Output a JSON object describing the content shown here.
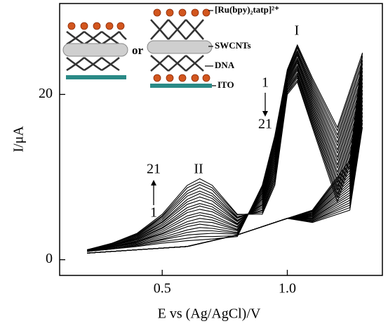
{
  "chart_data": {
    "type": "line",
    "x_label": "E vs (Ag/AgCl)/V",
    "y_label": "I/μA",
    "x": [
      0.2,
      0.3,
      0.4,
      0.5,
      0.6,
      0.65,
      0.7,
      0.8,
      0.9,
      0.95,
      1.0,
      1.04,
      1.1,
      1.2,
      1.3,
      1.25,
      1.1,
      1.0,
      0.9,
      0.8,
      0.6,
      0.4,
      0.2
    ],
    "xlim": [
      0.09,
      1.38
    ],
    "xticks": [
      0.5,
      {
        "value": 1.0,
        "label": "1.0"
      }
    ],
    "ylim": [
      -1.9,
      31
    ],
    "yticks": [
      0,
      20
    ],
    "color": "#000000",
    "series": [
      {
        "values": [
          1.0,
          1.3,
          1.6,
          2.0,
          2.3,
          2.4,
          2.5,
          2.8,
          9.0,
          15.0,
          23.0,
          26.0,
          22.0,
          16.0,
          25.0,
          12.0,
          6.0,
          5.0,
          4.0,
          3.0,
          1.6,
          1.2,
          0.8
        ]
      },
      {
        "values": [
          1.0,
          1.3,
          1.7,
          2.2,
          2.6,
          2.8,
          2.8,
          2.9,
          8.8,
          14.7,
          22.9,
          25.8,
          21.7,
          15.6,
          24.6,
          11.7,
          5.9,
          5.0,
          4.0,
          3.0,
          1.6,
          1.2,
          0.8
        ]
      },
      {
        "values": [
          1.0,
          1.4,
          1.8,
          2.4,
          3.0,
          3.1,
          3.2,
          3.1,
          8.7,
          14.4,
          22.7,
          25.6,
          21.4,
          15.1,
          24.1,
          11.4,
          5.9,
          5.0,
          4.0,
          3.0,
          1.6,
          1.2,
          0.8
        ]
      },
      {
        "values": [
          1.0,
          1.4,
          1.8,
          2.5,
          3.3,
          3.5,
          3.5,
          3.2,
          8.5,
          14.1,
          22.6,
          25.3,
          21.1,
          14.7,
          23.7,
          11.1,
          5.8,
          5.0,
          4.0,
          3.0,
          1.6,
          1.2,
          0.8
        ]
      },
      {
        "values": [
          1.0,
          1.4,
          1.9,
          2.7,
          3.6,
          3.9,
          3.8,
          3.3,
          8.3,
          13.8,
          22.4,
          25.1,
          20.8,
          14.2,
          23.2,
          10.8,
          5.7,
          5.0,
          4.0,
          3.0,
          1.6,
          1.2,
          0.8
        ]
      },
      {
        "values": [
          1.1,
          1.5,
          2.0,
          2.9,
          4.0,
          4.3,
          4.1,
          3.5,
          8.1,
          13.5,
          22.3,
          24.9,
          20.5,
          13.8,
          22.8,
          10.5,
          5.6,
          5.0,
          4.0,
          3.0,
          1.6,
          1.2,
          0.8
        ]
      },
      {
        "values": [
          1.1,
          1.5,
          2.1,
          3.1,
          4.3,
          4.6,
          4.5,
          3.6,
          8.0,
          13.2,
          22.1,
          24.7,
          20.2,
          13.3,
          22.3,
          10.2,
          5.6,
          5.0,
          4.0,
          3.0,
          1.6,
          1.2,
          0.8
        ]
      },
      {
        "values": [
          1.1,
          1.5,
          2.2,
          3.2,
          4.6,
          5.0,
          4.8,
          3.7,
          7.8,
          12.9,
          22.0,
          24.4,
          19.9,
          12.9,
          21.9,
          9.9,
          5.5,
          5.0,
          4.0,
          3.0,
          1.6,
          1.2,
          0.8
        ]
      },
      {
        "values": [
          1.1,
          1.6,
          2.2,
          3.4,
          5.0,
          5.4,
          5.1,
          3.9,
          7.6,
          12.6,
          21.8,
          24.2,
          19.6,
          12.4,
          21.4,
          9.6,
          5.4,
          5.0,
          4.0,
          3.0,
          1.6,
          1.2,
          0.8
        ]
      },
      {
        "values": [
          1.1,
          1.6,
          2.3,
          3.6,
          5.3,
          5.7,
          5.4,
          4.0,
          7.4,
          12.3,
          21.7,
          24.0,
          19.3,
          12.0,
          21.0,
          9.3,
          5.3,
          5.0,
          4.0,
          3.0,
          1.6,
          1.2,
          0.8
        ]
      },
      {
        "values": [
          1.1,
          1.7,
          2.4,
          3.8,
          5.7,
          6.1,
          5.8,
          4.2,
          7.3,
          12.0,
          21.5,
          23.8,
          19.0,
          11.5,
          20.5,
          9.0,
          5.3,
          5.0,
          4.0,
          3.0,
          1.6,
          1.2,
          0.8
        ]
      },
      {
        "values": [
          1.1,
          1.7,
          2.5,
          3.9,
          6.0,
          6.5,
          6.1,
          4.3,
          7.1,
          11.7,
          21.4,
          23.5,
          18.7,
          11.1,
          20.1,
          8.7,
          5.2,
          5.0,
          4.0,
          3.0,
          1.6,
          1.2,
          0.8
        ]
      },
      {
        "values": [
          1.1,
          1.7,
          2.6,
          4.1,
          6.3,
          6.8,
          6.4,
          4.4,
          6.9,
          11.4,
          21.2,
          23.3,
          18.4,
          10.6,
          19.6,
          8.4,
          5.1,
          5.0,
          4.0,
          3.0,
          1.6,
          1.2,
          0.8
        ]
      },
      {
        "values": [
          1.1,
          1.8,
          2.6,
          4.3,
          6.7,
          7.2,
          6.7,
          4.6,
          6.7,
          11.1,
          21.1,
          23.1,
          18.1,
          10.2,
          19.2,
          8.1,
          5.0,
          5.0,
          4.0,
          3.0,
          1.6,
          1.2,
          0.8
        ]
      },
      {
        "values": [
          1.1,
          1.8,
          2.7,
          4.5,
          7.0,
          7.6,
          7.1,
          4.7,
          6.6,
          10.8,
          20.9,
          22.9,
          17.8,
          9.7,
          18.7,
          7.8,
          5.0,
          5.0,
          4.0,
          3.0,
          1.6,
          1.2,
          0.8
        ]
      },
      {
        "values": [
          1.2,
          1.8,
          2.8,
          4.6,
          7.3,
          8.0,
          7.4,
          4.8,
          6.4,
          10.5,
          20.8,
          22.6,
          17.5,
          9.3,
          18.3,
          7.5,
          4.9,
          5.0,
          4.0,
          3.0,
          1.6,
          1.2,
          0.8
        ]
      },
      {
        "values": [
          1.2,
          1.9,
          2.9,
          4.8,
          7.7,
          8.3,
          7.7,
          5.0,
          6.2,
          10.2,
          20.6,
          22.4,
          17.2,
          8.8,
          17.8,
          7.2,
          4.8,
          5.0,
          4.0,
          3.0,
          1.6,
          1.2,
          0.8
        ]
      },
      {
        "values": [
          1.2,
          1.9,
          3.0,
          5.0,
          8.0,
          8.7,
          8.0,
          5.1,
          6.0,
          9.9,
          20.5,
          22.2,
          16.9,
          8.4,
          17.4,
          6.9,
          4.7,
          5.0,
          4.0,
          3.0,
          1.6,
          1.2,
          0.8
        ]
      },
      {
        "values": [
          1.2,
          1.9,
          3.0,
          5.2,
          8.3,
          9.1,
          8.4,
          5.2,
          5.9,
          9.6,
          20.3,
          22.0,
          16.6,
          7.9,
          16.9,
          6.6,
          4.7,
          5.0,
          4.0,
          3.0,
          1.6,
          1.2,
          0.8
        ]
      },
      {
        "values": [
          1.2,
          2.0,
          3.1,
          5.3,
          8.7,
          9.4,
          8.7,
          5.4,
          5.7,
          9.3,
          20.2,
          21.7,
          16.3,
          7.5,
          16.5,
          6.3,
          4.6,
          5.0,
          4.0,
          3.0,
          1.6,
          1.2,
          0.8
        ]
      },
      {
        "values": [
          1.2,
          2.0,
          3.2,
          5.5,
          9.0,
          9.8,
          9.0,
          5.5,
          5.5,
          9.0,
          20.0,
          21.5,
          16.0,
          7.0,
          16.0,
          6.0,
          4.5,
          5.0,
          4.0,
          3.0,
          1.6,
          1.2,
          0.8
        ]
      }
    ],
    "annotations": [
      "I",
      "II",
      "1",
      "21",
      "21",
      "1"
    ],
    "inset": {
      "connector": "or",
      "labels": [
        "[Ru(bpy)₂tatp]²⁺",
        "SWCNTs",
        "DNA",
        "ITO"
      ]
    }
  }
}
